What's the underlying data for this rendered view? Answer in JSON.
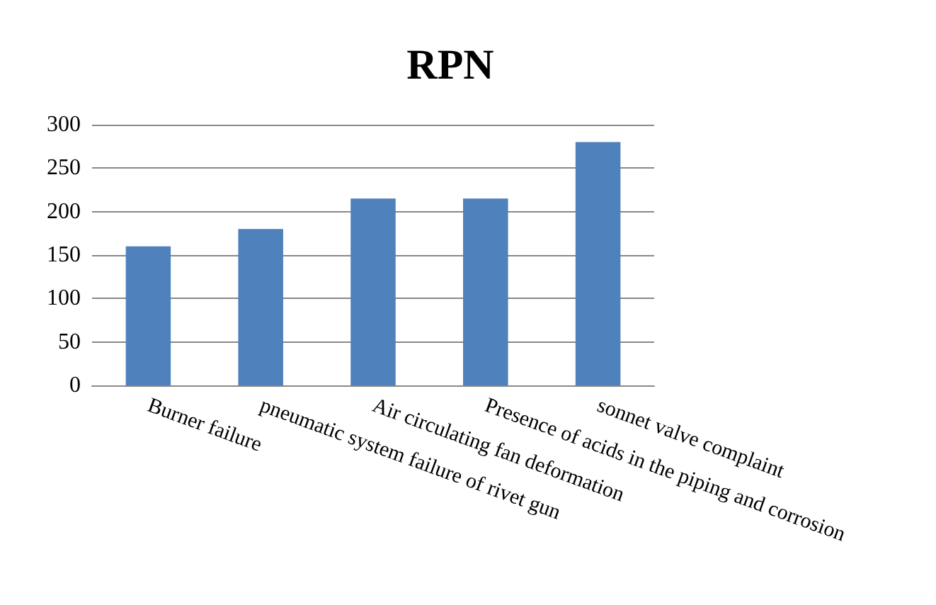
{
  "chart_data": {
    "type": "bar",
    "title": "RPN",
    "categories": [
      "Burner failure",
      "pneumatic system failure of rivet gun",
      "Air circulating fan deformation",
      "Presence of acids in the piping and corrosion",
      "sonnet valve complaint"
    ],
    "values": [
      160,
      180,
      215,
      215,
      280
    ],
    "color": "#4f81bd",
    "ylim": [
      0,
      300
    ],
    "yticks": [
      0,
      50,
      100,
      150,
      200,
      250,
      300
    ],
    "grid": "y"
  }
}
